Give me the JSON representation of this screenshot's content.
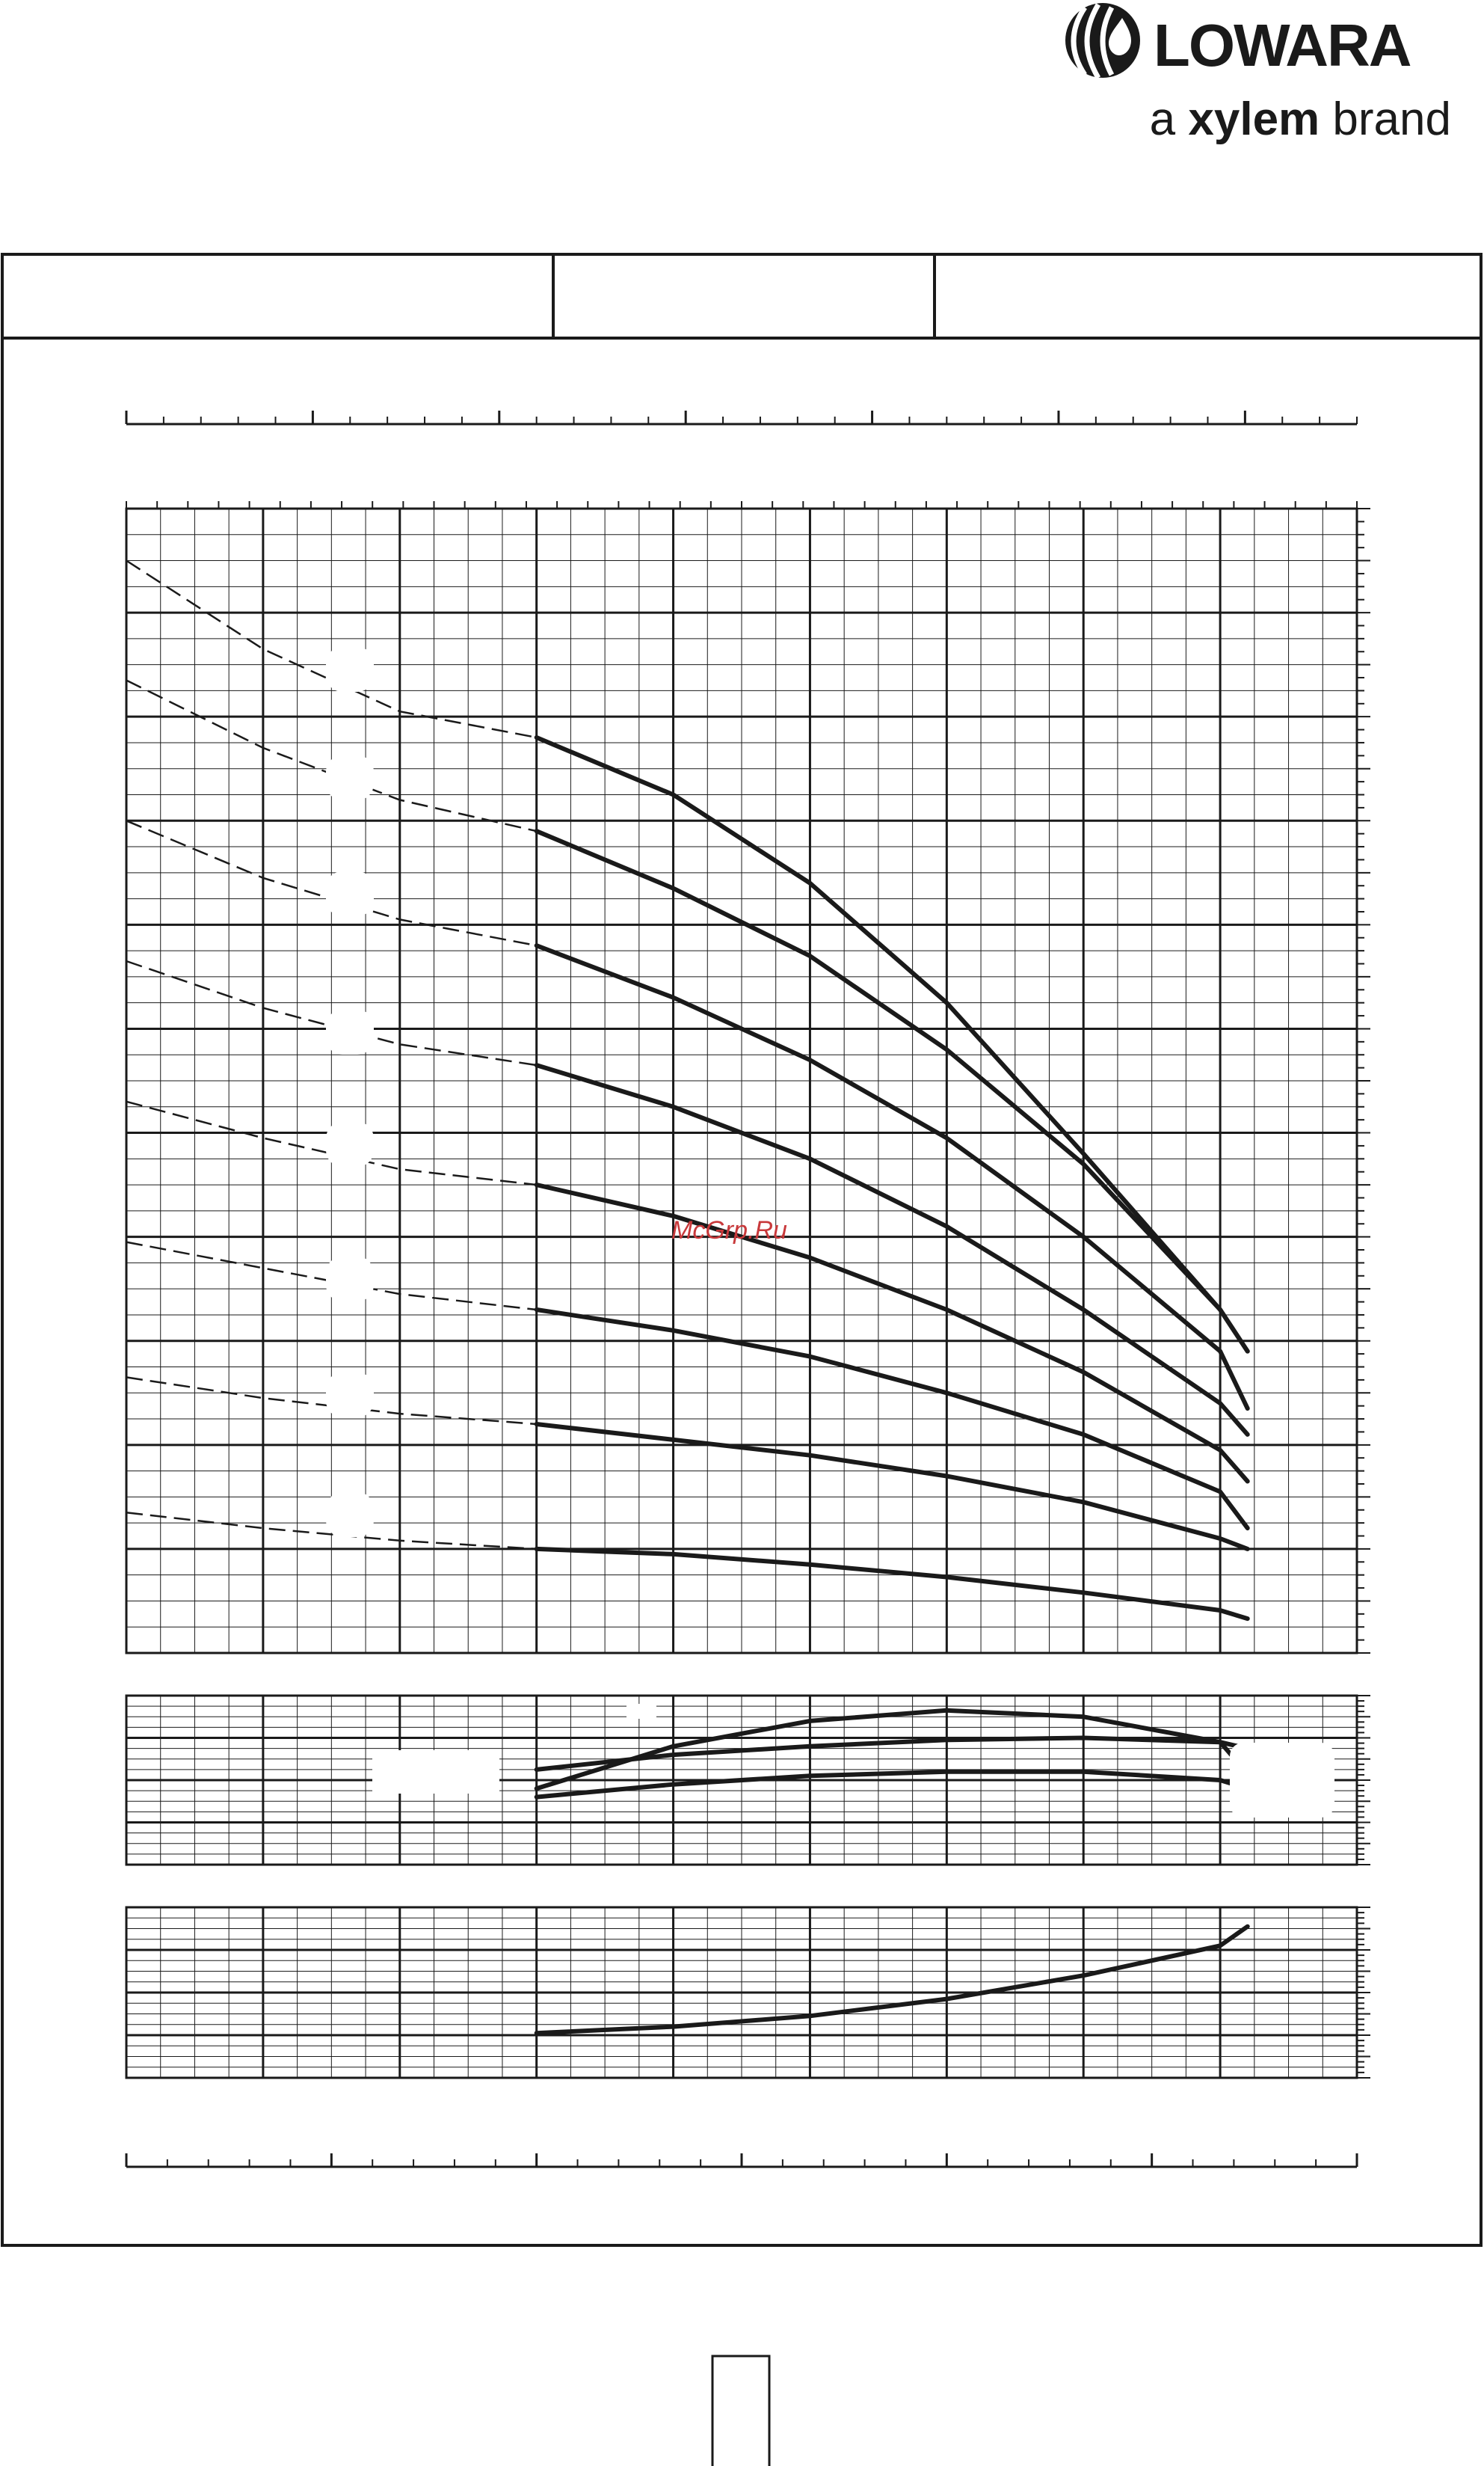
{
  "brand": {
    "name": "LOWARA",
    "tagline_prefix": "a",
    "tagline_brand": "xylem",
    "tagline_suffix": "brand"
  },
  "watermark": "McGrp.Ru",
  "colors": {
    "ink": "#1a1a1a",
    "watermark": "#c8393b",
    "background": "#ffffff"
  },
  "chart_data": [
    {
      "type": "line",
      "name_hint": "head-curves",
      "xlim": [
        0,
        18
      ],
      "ylim": [
        0,
        11
      ],
      "grid": true,
      "series": [
        {
          "solid": [
            [
              6,
              8.8
            ],
            [
              8,
              8.25
            ],
            [
              10,
              7.4
            ],
            [
              12,
              6.25
            ],
            [
              14,
              4.8
            ],
            [
              16,
              3.3
            ],
            [
              16.4,
              2.9
            ]
          ],
          "dashed": [
            [
              0,
              10.5
            ],
            [
              2,
              9.65
            ],
            [
              4,
              9.05
            ],
            [
              6,
              8.8
            ]
          ]
        },
        {
          "solid": [
            [
              6,
              7.9
            ],
            [
              8,
              7.35
            ],
            [
              10,
              6.7
            ],
            [
              12,
              5.8
            ],
            [
              14,
              4.7
            ],
            [
              16,
              3.3
            ],
            [
              16.4,
              2.9
            ]
          ],
          "dashed": [
            [
              0,
              9.35
            ],
            [
              2,
              8.7
            ],
            [
              4,
              8.2
            ],
            [
              6,
              7.9
            ]
          ]
        },
        {
          "solid": [
            [
              6,
              6.8
            ],
            [
              8,
              6.3
            ],
            [
              10,
              5.7
            ],
            [
              12,
              4.95
            ],
            [
              14,
              4.0
            ],
            [
              16,
              2.9
            ],
            [
              16.4,
              2.35
            ]
          ],
          "dashed": [
            [
              0,
              8.0
            ],
            [
              2,
              7.45
            ],
            [
              4,
              7.05
            ],
            [
              6,
              6.8
            ]
          ]
        },
        {
          "solid": [
            [
              6,
              5.65
            ],
            [
              8,
              5.25
            ],
            [
              10,
              4.75
            ],
            [
              12,
              4.1
            ],
            [
              14,
              3.3
            ],
            [
              16,
              2.4
            ],
            [
              16.4,
              2.1
            ]
          ],
          "dashed": [
            [
              0,
              6.65
            ],
            [
              2,
              6.2
            ],
            [
              4,
              5.85
            ],
            [
              6,
              5.65
            ]
          ]
        },
        {
          "solid": [
            [
              6,
              4.5
            ],
            [
              8,
              4.2
            ],
            [
              10,
              3.8
            ],
            [
              12,
              3.3
            ],
            [
              14,
              2.7
            ],
            [
              16,
              1.95
            ],
            [
              16.4,
              1.65
            ]
          ],
          "dashed": [
            [
              0,
              5.3
            ],
            [
              2,
              4.95
            ],
            [
              4,
              4.65
            ],
            [
              6,
              4.5
            ]
          ]
        },
        {
          "solid": [
            [
              6,
              3.3
            ],
            [
              8,
              3.1
            ],
            [
              10,
              2.85
            ],
            [
              12,
              2.5
            ],
            [
              14,
              2.1
            ],
            [
              16,
              1.55
            ],
            [
              16.4,
              1.2
            ]
          ],
          "dashed": [
            [
              0,
              3.95
            ],
            [
              2,
              3.7
            ],
            [
              4,
              3.45
            ],
            [
              6,
              3.3
            ]
          ]
        },
        {
          "solid": [
            [
              6,
              2.2
            ],
            [
              8,
              2.05
            ],
            [
              10,
              1.9
            ],
            [
              12,
              1.7
            ],
            [
              14,
              1.45
            ],
            [
              16,
              1.1
            ],
            [
              16.4,
              1.0
            ]
          ],
          "dashed": [
            [
              0,
              2.65
            ],
            [
              2,
              2.45
            ],
            [
              4,
              2.3
            ],
            [
              6,
              2.2
            ]
          ]
        },
        {
          "solid": [
            [
              6,
              1.0
            ],
            [
              8,
              0.95
            ],
            [
              10,
              0.85
            ],
            [
              12,
              0.73
            ],
            [
              14,
              0.58
            ],
            [
              16,
              0.41
            ],
            [
              16.4,
              0.33
            ]
          ],
          "dashed": [
            [
              0,
              1.35
            ],
            [
              2,
              1.2
            ],
            [
              4,
              1.08
            ],
            [
              6,
              1.0
            ]
          ]
        }
      ]
    },
    {
      "type": "line",
      "name_hint": "efficiency-curves",
      "xlim": [
        0,
        18
      ],
      "ylim": [
        0,
        4
      ],
      "grid": true,
      "series": [
        {
          "values": [
            [
              6,
              1.8
            ],
            [
              8,
              2.8
            ],
            [
              10,
              3.4
            ],
            [
              12,
              3.65
            ],
            [
              14,
              3.5
            ],
            [
              16,
              2.9
            ],
            [
              16.4,
              2.15
            ]
          ]
        },
        {
          "values": [
            [
              6,
              2.25
            ],
            [
              8,
              2.6
            ],
            [
              10,
              2.8
            ],
            [
              12,
              2.95
            ],
            [
              14,
              3.0
            ],
            [
              16,
              2.9
            ],
            [
              16.4,
              2.75
            ]
          ]
        },
        {
          "values": [
            [
              6,
              1.6
            ],
            [
              8,
              1.9
            ],
            [
              10,
              2.1
            ],
            [
              12,
              2.2
            ],
            [
              14,
              2.2
            ],
            [
              16,
              2.0
            ],
            [
              16.4,
              1.8
            ]
          ]
        }
      ]
    },
    {
      "type": "line",
      "name_hint": "npsh-curve",
      "xlim": [
        0,
        18
      ],
      "ylim": [
        0,
        4
      ],
      "grid": true,
      "series": [
        {
          "values": [
            [
              6,
              1.05
            ],
            [
              8,
              1.2
            ],
            [
              10,
              1.45
            ],
            [
              12,
              1.85
            ],
            [
              14,
              2.4
            ],
            [
              16,
              3.1
            ],
            [
              16.4,
              3.55
            ]
          ]
        }
      ]
    }
  ]
}
